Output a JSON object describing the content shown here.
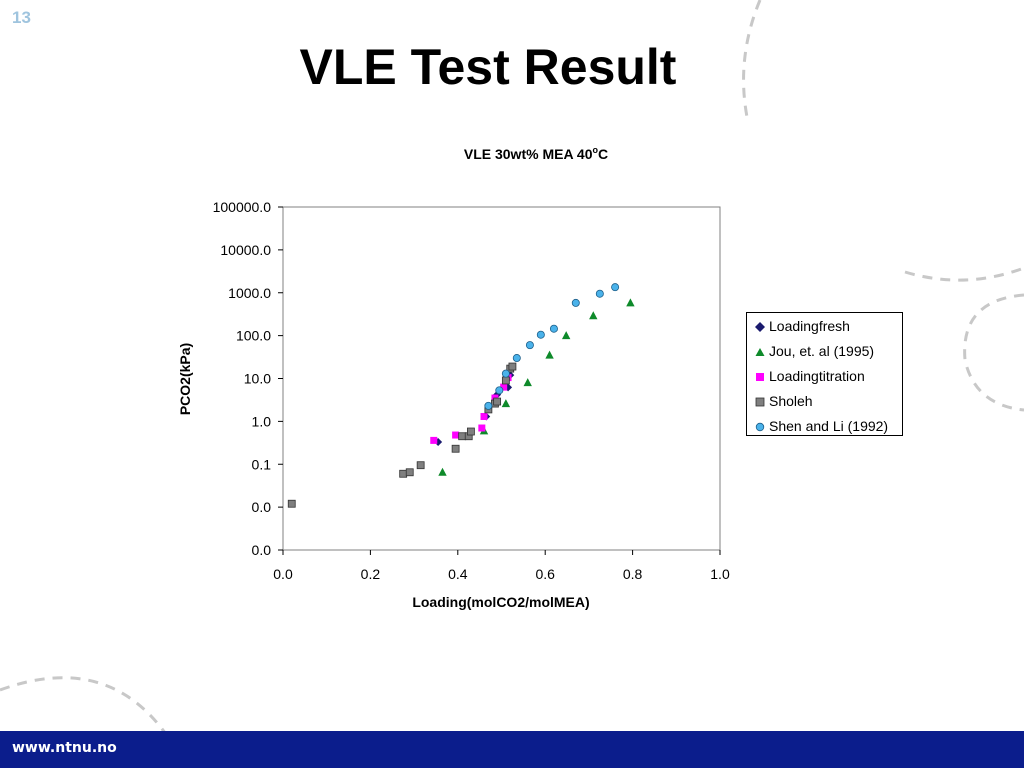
{
  "slide": {
    "number": "13",
    "title": "VLE Test Result",
    "footer_url": "www.ntnu.no"
  },
  "colors": {
    "footer": "#0b1d8c",
    "slide_number": "#9fc4de",
    "deco": "#c8c8c8"
  },
  "chart_data": {
    "type": "scatter",
    "title": "VLE 30wt% MEA 40",
    "title_superscript": "o",
    "title_suffix": "C",
    "xlabel": "Loading(molCO2/molMEA)",
    "ylabel": "PCO2(kPa)",
    "xlim": [
      0,
      1
    ],
    "ylim_log": [
      0.001,
      100000
    ],
    "y_scale": "log",
    "x_ticks": [
      "0.0",
      "0.2",
      "0.4",
      "0.6",
      "0.8",
      "1.0"
    ],
    "y_ticks": [
      "0.0",
      "0.0",
      "0.1",
      "1.0",
      "10.0",
      "100.0",
      "1000.0",
      "10000.0",
      "100000.0"
    ],
    "grid": false,
    "legend_position": "right",
    "series": [
      {
        "name": "Loadingfresh",
        "marker": "diamond",
        "color": "#1a1a6e",
        "points": [
          [
            0.355,
            0.33
          ],
          [
            0.465,
            1.3
          ],
          [
            0.49,
            4.2
          ],
          [
            0.515,
            6.2
          ],
          [
            0.52,
            12
          ]
        ]
      },
      {
        "name": "Jou, et. al (1995)",
        "marker": "triangle",
        "color": "#0e8a2a",
        "points": [
          [
            0.365,
            0.065
          ],
          [
            0.46,
            0.6
          ],
          [
            0.51,
            2.6
          ],
          [
            0.56,
            8
          ],
          [
            0.61,
            35
          ],
          [
            0.648,
            100
          ],
          [
            0.71,
            290
          ],
          [
            0.795,
            580
          ]
        ]
      },
      {
        "name": "Loadingtitration",
        "marker": "square",
        "color": "#ff00ff",
        "points": [
          [
            0.345,
            0.36
          ],
          [
            0.395,
            0.48
          ],
          [
            0.455,
            0.7
          ],
          [
            0.46,
            1.3
          ],
          [
            0.485,
            3.5
          ],
          [
            0.505,
            6.3
          ],
          [
            0.515,
            10.5
          ]
        ]
      },
      {
        "name": "Sholeh",
        "marker": "square",
        "color": "#7f7f7f",
        "points": [
          [
            0.02,
            0.012
          ],
          [
            0.275,
            0.06
          ],
          [
            0.29,
            0.065
          ],
          [
            0.315,
            0.095
          ],
          [
            0.395,
            0.23
          ],
          [
            0.41,
            0.45
          ],
          [
            0.425,
            0.45
          ],
          [
            0.43,
            0.58
          ],
          [
            0.47,
            1.9
          ],
          [
            0.485,
            2.6
          ],
          [
            0.49,
            2.9
          ],
          [
            0.51,
            9
          ],
          [
            0.52,
            17
          ],
          [
            0.525,
            19
          ]
        ]
      },
      {
        "name": "Shen and Li (1992)",
        "marker": "circle",
        "color": "#4ab2ea",
        "points": [
          [
            0.47,
            2.3
          ],
          [
            0.495,
            5.3
          ],
          [
            0.51,
            13
          ],
          [
            0.535,
            30
          ],
          [
            0.565,
            60
          ],
          [
            0.59,
            105
          ],
          [
            0.62,
            145
          ],
          [
            0.67,
            580
          ],
          [
            0.725,
            950
          ],
          [
            0.76,
            1350
          ]
        ]
      }
    ]
  }
}
